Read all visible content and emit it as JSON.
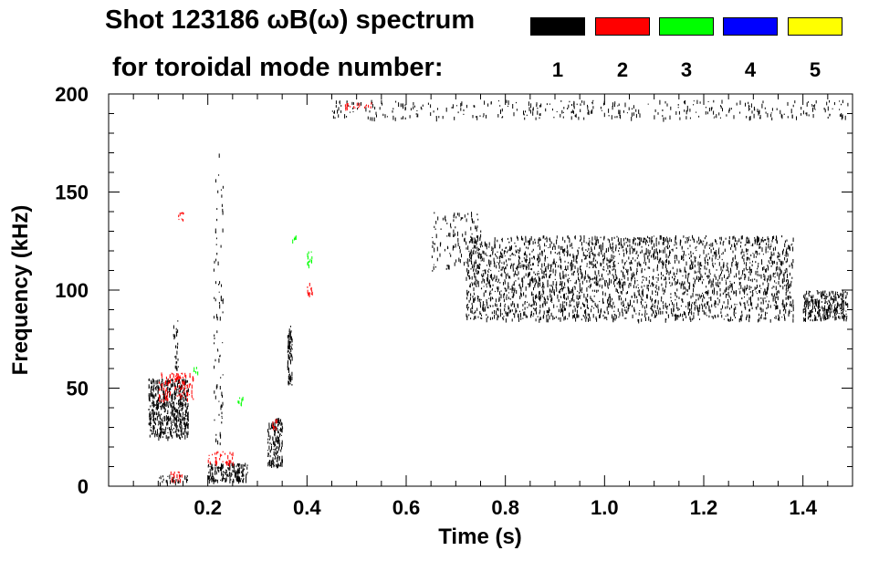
{
  "title": {
    "line1": "Shot 123186 ωB(ω) spectrum",
    "line2": "for toroidal mode number:"
  },
  "legend": [
    {
      "label": "1",
      "color": "#000000"
    },
    {
      "label": "2",
      "color": "#ff0000"
    },
    {
      "label": "3",
      "color": "#00ff00"
    },
    {
      "label": "4",
      "color": "#0000ff"
    },
    {
      "label": "5",
      "color": "#ffff00"
    }
  ],
  "chart_data": {
    "type": "scatter",
    "title": "Shot 123186 ωB(ω) spectrum for toroidal mode number:",
    "xlabel": "Time (s)",
    "ylabel": "Frequency (kHz)",
    "xlim": [
      0.0,
      1.5
    ],
    "ylim": [
      0,
      200
    ],
    "xticks": [
      0.2,
      0.4,
      0.6,
      0.8,
      1.0,
      1.2,
      1.4
    ],
    "xtick_labels": [
      "0.2",
      "0.4",
      "0.6",
      "0.8",
      "1.0",
      "1.2",
      "1.4"
    ],
    "yticks": [
      0,
      50,
      100,
      150,
      200
    ],
    "ytick_labels": [
      "0",
      "50",
      "100",
      "150",
      "200"
    ],
    "grid": false,
    "legend_position": "top-right",
    "series": [
      {
        "name": "1",
        "color": "#000000",
        "regions": [
          {
            "x": [
              0.08,
              0.16
            ],
            "y": [
              25,
              55
            ],
            "density": 0.9
          },
          {
            "x": [
              0.1,
              0.16
            ],
            "y": [
              2,
              6
            ],
            "density": 0.5
          },
          {
            "x": [
              0.13,
              0.14
            ],
            "y": [
              60,
              85
            ],
            "density": 0.3
          },
          {
            "x": [
              0.2,
              0.28
            ],
            "y": [
              3,
              12
            ],
            "density": 0.9
          },
          {
            "x": [
              0.21,
              0.23
            ],
            "y": [
              20,
              170
            ],
            "density": 0.1
          },
          {
            "x": [
              0.32,
              0.35
            ],
            "y": [
              10,
              35
            ],
            "density": 0.8
          },
          {
            "x": [
              0.36,
              0.37
            ],
            "y": [
              52,
              82
            ],
            "density": 0.9
          },
          {
            "x": [
              0.72,
              1.38
            ],
            "y": [
              85,
              128
            ],
            "density": 0.75
          },
          {
            "x": [
              1.4,
              1.49
            ],
            "y": [
              85,
              100
            ],
            "density": 0.85
          },
          {
            "x": [
              0.45,
              1.49
            ],
            "y": [
              188,
              197
            ],
            "density": 0.15
          },
          {
            "x": [
              0.65,
              0.75
            ],
            "y": [
              110,
              140
            ],
            "density": 0.15
          }
        ]
      },
      {
        "name": "2",
        "color": "#ff0000",
        "regions": [
          {
            "x": [
              0.1,
              0.17
            ],
            "y": [
              44,
              58
            ],
            "density": 0.4
          },
          {
            "x": [
              0.14,
              0.15
            ],
            "y": [
              136,
              140
            ],
            "density": 0.6
          },
          {
            "x": [
              0.12,
              0.15
            ],
            "y": [
              3,
              8
            ],
            "density": 0.4
          },
          {
            "x": [
              0.2,
              0.25
            ],
            "y": [
              12,
              18
            ],
            "density": 0.4
          },
          {
            "x": [
              0.33,
              0.34
            ],
            "y": [
              30,
              35
            ],
            "density": 0.4
          },
          {
            "x": [
              0.4,
              0.41
            ],
            "y": [
              98,
              104
            ],
            "density": 0.5
          },
          {
            "x": [
              0.47,
              0.53
            ],
            "y": [
              193,
              196
            ],
            "density": 0.3
          }
        ]
      },
      {
        "name": "3",
        "color": "#00ff00",
        "regions": [
          {
            "x": [
              0.26,
              0.27
            ],
            "y": [
              42,
              46
            ],
            "density": 0.5
          },
          {
            "x": [
              0.4,
              0.41
            ],
            "y": [
              112,
              120
            ],
            "density": 0.5
          },
          {
            "x": [
              0.17,
              0.18
            ],
            "y": [
              58,
              62
            ],
            "density": 0.4
          },
          {
            "x": [
              0.37,
              0.38
            ],
            "y": [
              125,
              128
            ],
            "density": 0.3
          }
        ]
      },
      {
        "name": "4",
        "color": "#0000ff",
        "regions": []
      },
      {
        "name": "5",
        "color": "#ffff00",
        "regions": []
      }
    ]
  }
}
